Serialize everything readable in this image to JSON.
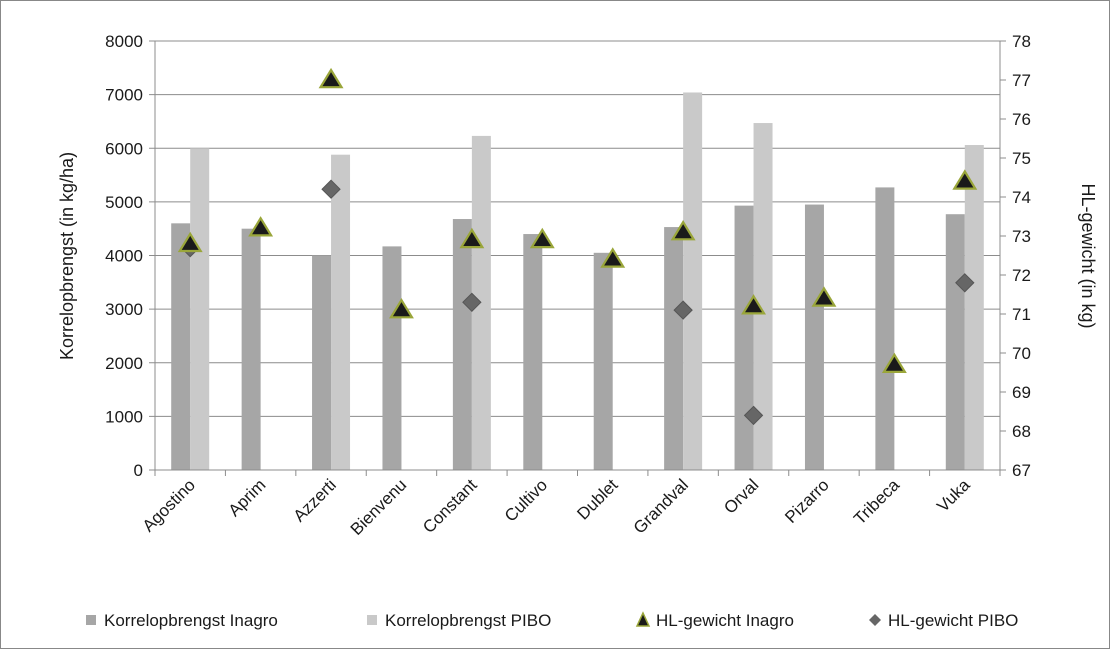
{
  "chart_data": {
    "type": "bar",
    "categories": [
      "Agostino",
      "Aprim",
      "Azzerti",
      "Bienvenu",
      "Constant",
      "Cultivo",
      "Dublet",
      "Grandval",
      "Orval",
      "Pizarro",
      "Tribeca",
      "Vuka"
    ],
    "ylabel": "Korrelopbrengst (in kg/ha)",
    "y2label": "HL-gewicht (in kg)",
    "ylim": [
      0,
      8000
    ],
    "y2lim": [
      67,
      78
    ],
    "yticks": [
      0,
      1000,
      2000,
      3000,
      4000,
      5000,
      6000,
      7000,
      8000
    ],
    "y2ticks": [
      67,
      68,
      69,
      70,
      71,
      72,
      73,
      74,
      75,
      76,
      77,
      78
    ],
    "grid": true,
    "legend_position": "bottom",
    "series": [
      {
        "name": "Korrelopbrengst Inagro",
        "type": "bar",
        "axis": "left",
        "color": "#a6a6a6",
        "values": [
          4600,
          4500,
          4000,
          4170,
          4680,
          4400,
          4050,
          4530,
          4930,
          4950,
          5270,
          4770
        ]
      },
      {
        "name": "Korrelopbrengst PIBO",
        "type": "bar",
        "axis": "left",
        "color": "#c9c9c9",
        "values": [
          6000,
          null,
          5880,
          null,
          6230,
          null,
          null,
          7040,
          6470,
          null,
          null,
          6060
        ]
      },
      {
        "name": "HL-gewicht Inagro",
        "type": "marker",
        "marker": "triangle",
        "axis": "right",
        "color": "#1a1a1a",
        "edge_color": "#9aa63a",
        "values": [
          72.8,
          73.2,
          77.0,
          71.1,
          72.9,
          72.9,
          72.4,
          73.1,
          71.2,
          71.4,
          69.7,
          74.4
        ]
      },
      {
        "name": "HL-gewicht PIBO",
        "type": "marker",
        "marker": "diamond",
        "axis": "right",
        "color": "#666666",
        "values": [
          72.7,
          null,
          74.2,
          null,
          71.3,
          null,
          null,
          71.1,
          68.4,
          null,
          null,
          71.8
        ]
      }
    ]
  }
}
